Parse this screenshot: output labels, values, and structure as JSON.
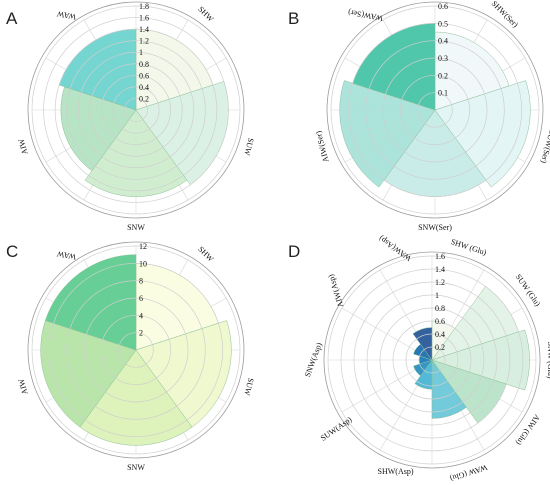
{
  "chart_data": [
    {
      "type": "polar-bar",
      "panel": "A",
      "categories": [
        "SHW",
        "SUW",
        "SNW",
        "AIW",
        "WAW"
      ],
      "values": [
        1.4,
        1.6,
        1.5,
        1.3,
        1.4
      ],
      "colors": [
        "#f3f8ea",
        "#daf0e4",
        "#cdeccd",
        "#b3e3c2",
        "#6dd3cf"
      ],
      "rlim": [
        0,
        1.8
      ],
      "ticks": [
        "0.2",
        "0.4",
        "0.6",
        "0.8",
        "1",
        "1.2",
        "1.4",
        "1.6",
        "1.8"
      ],
      "label_rotations": [
        45,
        105,
        0,
        -105,
        -170
      ]
    },
    {
      "type": "polar-bar",
      "panel": "B",
      "categories": [
        "SHW(Ser)",
        "SUW(Ser)",
        "SNW(Ser)",
        "AIW(Ser)",
        "WAW(Ser)"
      ],
      "values": [
        0.45,
        0.55,
        0.5,
        0.55,
        0.5
      ],
      "colors": [
        "#f0f8fa",
        "#e1f4f4",
        "#c6ebe8",
        "#a8e1d9",
        "#47c4a7"
      ],
      "rlim": [
        0,
        0.6
      ],
      "ticks": [
        "0.1",
        "0.2",
        "0.3",
        "0.4",
        "0.5",
        "0.6"
      ],
      "label_rotations": [
        45,
        105,
        0,
        -105,
        -170
      ]
    },
    {
      "type": "polar-bar",
      "panel": "C",
      "categories": [
        "SHW",
        "SUW",
        "SNW",
        "AIW",
        "WAW"
      ],
      "values": [
        10,
        11,
        11,
        11,
        11
      ],
      "colors": [
        "#fbfde2",
        "#eff8cc",
        "#dcf1b7",
        "#b5e4a6",
        "#5fcc8f"
      ],
      "rlim": [
        0,
        12
      ],
      "ticks": [
        "2",
        "4",
        "6",
        "8",
        "10",
        "12"
      ],
      "label_rotations": [
        45,
        105,
        0,
        -105,
        -170
      ]
    },
    {
      "type": "polar-bar",
      "panel": "D",
      "categories": [
        "SHW (Glu)",
        "SUW (Glu)",
        "SNW (Glu)",
        "AIW (Glu)",
        "WAW (Glu)",
        "SHW(Asp)",
        "SUW(Asp)",
        "SNW(Asp)",
        "AIW(Asp)",
        "WAW(Asp)"
      ],
      "values": [
        0.6,
        1.4,
        1.5,
        1.2,
        0.9,
        0.45,
        0.3,
        0.2,
        0.3,
        0.5
      ],
      "colors": [
        "#f3f8ee",
        "#e3f2e6",
        "#d6eedd",
        "#b8e3c8",
        "#6cc7d8",
        "#4ab5d4",
        "#2a8fc0",
        "#1d7cb8",
        "#1c6fae",
        "#285a9a"
      ],
      "rlim": [
        0,
        1.6
      ],
      "ticks": [
        "0.2",
        "0.4",
        "0.6",
        "0.8",
        "1",
        "1.2",
        "1.4",
        "1.6"
      ],
      "label_rotations": [
        18,
        55,
        90,
        125,
        162,
        0,
        -35,
        -70,
        -108,
        -145
      ]
    }
  ],
  "panels": {
    "A": {
      "letter": "A"
    },
    "B": {
      "letter": "B"
    },
    "C": {
      "letter": "C"
    },
    "D": {
      "letter": "D"
    }
  }
}
